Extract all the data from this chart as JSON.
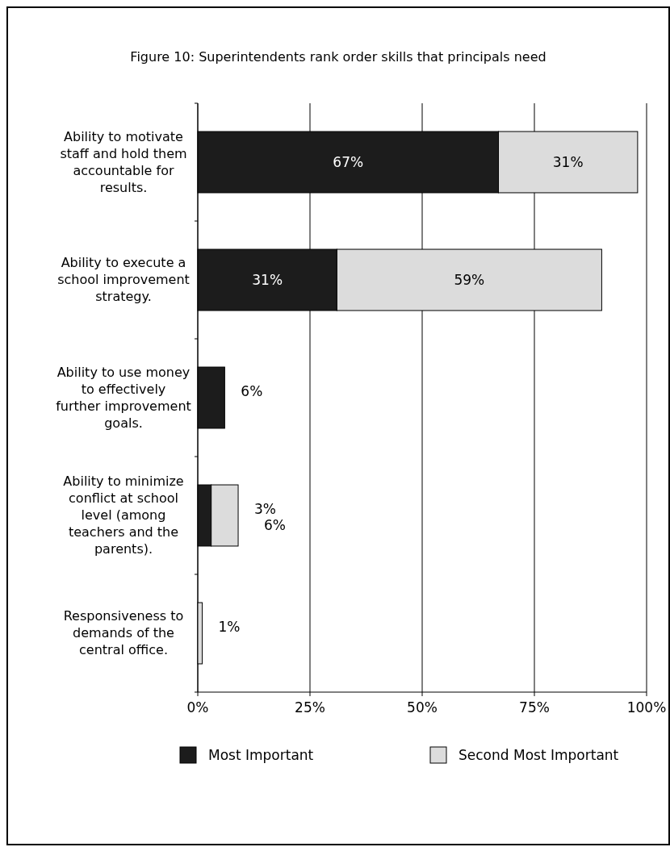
{
  "chart_data": {
    "type": "bar",
    "orientation": "horizontal",
    "stacked": true,
    "title": "Figure 10: Superintendents rank order skills that principals need",
    "categories": [
      "Ability to motivate staff and hold them accountable for results.",
      "Ability to execute a school improvement strategy.",
      "Ability to use money to effectively further improvement goals.",
      "Ability to minimize conflict at school level (among teachers and the parents).",
      "Responsiveness to demands of the central office."
    ],
    "series": [
      {
        "name": "Most Important",
        "color": "#1c1c1c",
        "values": [
          67,
          31,
          6,
          3,
          null
        ],
        "value_labels": [
          "67%",
          "31%",
          "6%",
          "3%",
          null
        ]
      },
      {
        "name": "Second Most Important",
        "color": "#dcdcdc",
        "values": [
          31,
          59,
          null,
          6,
          1
        ],
        "value_labels": [
          "31%",
          "59%",
          null,
          "6%",
          "1%"
        ]
      }
    ],
    "xlim": [
      0,
      100
    ],
    "xticks": [
      {
        "value": 0,
        "label": "0%"
      },
      {
        "value": 25,
        "label": "25%"
      },
      {
        "value": 50,
        "label": "50%"
      },
      {
        "value": 75,
        "label": "75%"
      },
      {
        "value": 100,
        "label": "100%"
      }
    ],
    "grid": "x",
    "legend": "bottom"
  }
}
